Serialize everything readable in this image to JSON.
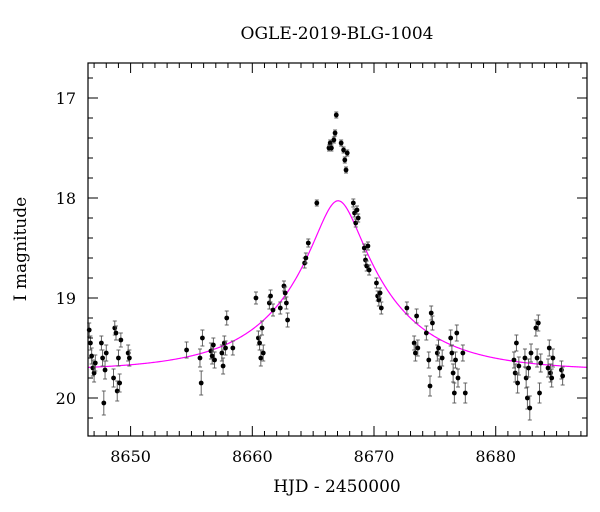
{
  "chart_data": {
    "type": "scatter",
    "title": "OGLE-2019-BLG-1004",
    "xlabel": "HJD - 2450000",
    "ylabel": "I magnitude",
    "xlim": [
      8646.5,
      8687.5
    ],
    "ylim": [
      20.38,
      16.65
    ],
    "y_inverted": true,
    "x_ticks": [
      8650,
      8660,
      8670,
      8680
    ],
    "y_ticks": [
      17,
      18,
      19,
      20
    ],
    "grid": false,
    "model_color": "#ff00ff",
    "point_color": "#000000",
    "model_curve": {
      "type": "point-lens",
      "t0": 8667.05,
      "u0": 0.212,
      "tE": 8.5,
      "baseline_mag": 19.73
    },
    "series": [
      {
        "points": [
          [
            8646.6,
            19.32,
            0.07
          ],
          [
            8646.7,
            19.45,
            0.07
          ],
          [
            8646.8,
            19.58,
            0.08
          ],
          [
            8646.9,
            19.7,
            0.08
          ],
          [
            8647.0,
            19.75,
            0.09
          ],
          [
            8647.1,
            19.65,
            0.08
          ],
          [
            8647.6,
            19.45,
            0.07
          ],
          [
            8647.7,
            19.6,
            0.08
          ],
          [
            8647.8,
            20.05,
            0.12
          ],
          [
            8647.9,
            19.72,
            0.09
          ],
          [
            8648.0,
            19.55,
            0.08
          ],
          [
            8648.6,
            19.8,
            0.09
          ],
          [
            8648.7,
            19.3,
            0.07
          ],
          [
            8648.8,
            19.35,
            0.07
          ],
          [
            8648.9,
            19.93,
            0.1
          ],
          [
            8649.0,
            19.6,
            0.08
          ],
          [
            8649.1,
            19.85,
            0.09
          ],
          [
            8649.2,
            19.42,
            0.07
          ],
          [
            8649.8,
            19.55,
            0.08
          ],
          [
            8649.9,
            19.6,
            0.08
          ],
          [
            8654.6,
            19.52,
            0.08
          ],
          [
            8655.7,
            19.6,
            0.09
          ],
          [
            8655.8,
            19.85,
            0.12
          ],
          [
            8655.9,
            19.4,
            0.08
          ],
          [
            8656.6,
            19.53,
            0.08
          ],
          [
            8656.7,
            19.58,
            0.08
          ],
          [
            8656.8,
            19.47,
            0.07
          ],
          [
            8656.9,
            19.62,
            0.08
          ],
          [
            8657.5,
            19.55,
            0.08
          ],
          [
            8657.6,
            19.68,
            0.08
          ],
          [
            8657.7,
            19.45,
            0.07
          ],
          [
            8657.8,
            19.5,
            0.07
          ],
          [
            8657.9,
            19.2,
            0.07
          ],
          [
            8658.4,
            19.5,
            0.07
          ],
          [
            8660.3,
            19.0,
            0.06
          ],
          [
            8660.5,
            19.4,
            0.07
          ],
          [
            8660.6,
            19.45,
            0.07
          ],
          [
            8660.7,
            19.6,
            0.08
          ],
          [
            8660.8,
            19.3,
            0.07
          ],
          [
            8660.9,
            19.55,
            0.08
          ],
          [
            8661.4,
            19.05,
            0.06
          ],
          [
            8661.5,
            18.98,
            0.06
          ],
          [
            8661.7,
            19.12,
            0.06
          ],
          [
            8662.3,
            19.1,
            0.06
          ],
          [
            8662.6,
            18.88,
            0.05
          ],
          [
            8662.7,
            18.95,
            0.06
          ],
          [
            8662.8,
            19.05,
            0.06
          ],
          [
            8662.9,
            19.22,
            0.07
          ],
          [
            8664.3,
            18.65,
            0.05
          ],
          [
            8664.4,
            18.6,
            0.05
          ],
          [
            8664.6,
            18.45,
            0.04
          ],
          [
            8665.3,
            18.05,
            0.03
          ],
          [
            8666.3,
            17.5,
            0.03
          ],
          [
            8666.4,
            17.45,
            0.03
          ],
          [
            8666.5,
            17.5,
            0.03
          ],
          [
            8666.7,
            17.42,
            0.03
          ],
          [
            8666.8,
            17.35,
            0.03
          ],
          [
            8666.9,
            17.17,
            0.03
          ],
          [
            8667.3,
            17.45,
            0.03
          ],
          [
            8667.5,
            17.52,
            0.03
          ],
          [
            8667.6,
            17.62,
            0.03
          ],
          [
            8667.7,
            17.72,
            0.03
          ],
          [
            8667.8,
            17.55,
            0.03
          ],
          [
            8668.3,
            18.05,
            0.04
          ],
          [
            8668.4,
            18.15,
            0.04
          ],
          [
            8668.5,
            18.25,
            0.04
          ],
          [
            8668.6,
            18.12,
            0.04
          ],
          [
            8668.7,
            18.2,
            0.04
          ],
          [
            8669.2,
            18.5,
            0.04
          ],
          [
            8669.3,
            18.62,
            0.05
          ],
          [
            8669.4,
            18.68,
            0.05
          ],
          [
            8669.5,
            18.48,
            0.04
          ],
          [
            8669.6,
            18.72,
            0.05
          ],
          [
            8670.2,
            18.85,
            0.05
          ],
          [
            8670.3,
            18.98,
            0.05
          ],
          [
            8670.4,
            19.02,
            0.06
          ],
          [
            8670.5,
            18.95,
            0.05
          ],
          [
            8670.6,
            19.1,
            0.06
          ],
          [
            8672.7,
            19.1,
            0.06
          ],
          [
            8673.3,
            19.45,
            0.07
          ],
          [
            8673.4,
            19.55,
            0.08
          ],
          [
            8673.5,
            19.18,
            0.07
          ],
          [
            8673.6,
            19.5,
            0.08
          ],
          [
            8674.3,
            19.35,
            0.07
          ],
          [
            8674.5,
            19.62,
            0.08
          ],
          [
            8674.6,
            19.88,
            0.1
          ],
          [
            8674.7,
            19.15,
            0.07
          ],
          [
            8674.8,
            19.25,
            0.07
          ],
          [
            8675.2,
            19.55,
            0.08
          ],
          [
            8675.3,
            19.5,
            0.08
          ],
          [
            8675.4,
            19.7,
            0.09
          ],
          [
            8675.6,
            19.6,
            0.08
          ],
          [
            8676.3,
            19.4,
            0.08
          ],
          [
            8676.4,
            19.55,
            0.08
          ],
          [
            8676.5,
            19.75,
            0.09
          ],
          [
            8676.6,
            19.95,
            0.1
          ],
          [
            8676.7,
            19.62,
            0.08
          ],
          [
            8676.8,
            19.35,
            0.08
          ],
          [
            8676.9,
            19.8,
            0.09
          ],
          [
            8677.3,
            19.55,
            0.08
          ],
          [
            8677.5,
            19.95,
            0.1
          ],
          [
            8681.5,
            19.62,
            0.08
          ],
          [
            8681.6,
            19.75,
            0.09
          ],
          [
            8681.7,
            19.45,
            0.08
          ],
          [
            8681.8,
            19.85,
            0.1
          ],
          [
            8681.9,
            19.68,
            0.09
          ],
          [
            8682.4,
            19.6,
            0.09
          ],
          [
            8682.5,
            19.8,
            0.1
          ],
          [
            8682.6,
            20.0,
            0.11
          ],
          [
            8682.7,
            19.7,
            0.09
          ],
          [
            8682.8,
            20.1,
            0.12
          ],
          [
            8682.9,
            19.55,
            0.09
          ],
          [
            8683.3,
            19.3,
            0.08
          ],
          [
            8683.4,
            19.6,
            0.09
          ],
          [
            8683.5,
            19.25,
            0.08
          ],
          [
            8683.6,
            19.95,
            0.1
          ],
          [
            8683.7,
            19.65,
            0.09
          ],
          [
            8684.3,
            19.7,
            0.09
          ],
          [
            8684.4,
            19.5,
            0.08
          ],
          [
            8684.5,
            19.75,
            0.09
          ],
          [
            8684.6,
            19.8,
            0.09
          ],
          [
            8684.7,
            19.6,
            0.09
          ],
          [
            8685.4,
            19.72,
            0.09
          ],
          [
            8685.5,
            19.78,
            0.09
          ]
        ]
      }
    ]
  }
}
